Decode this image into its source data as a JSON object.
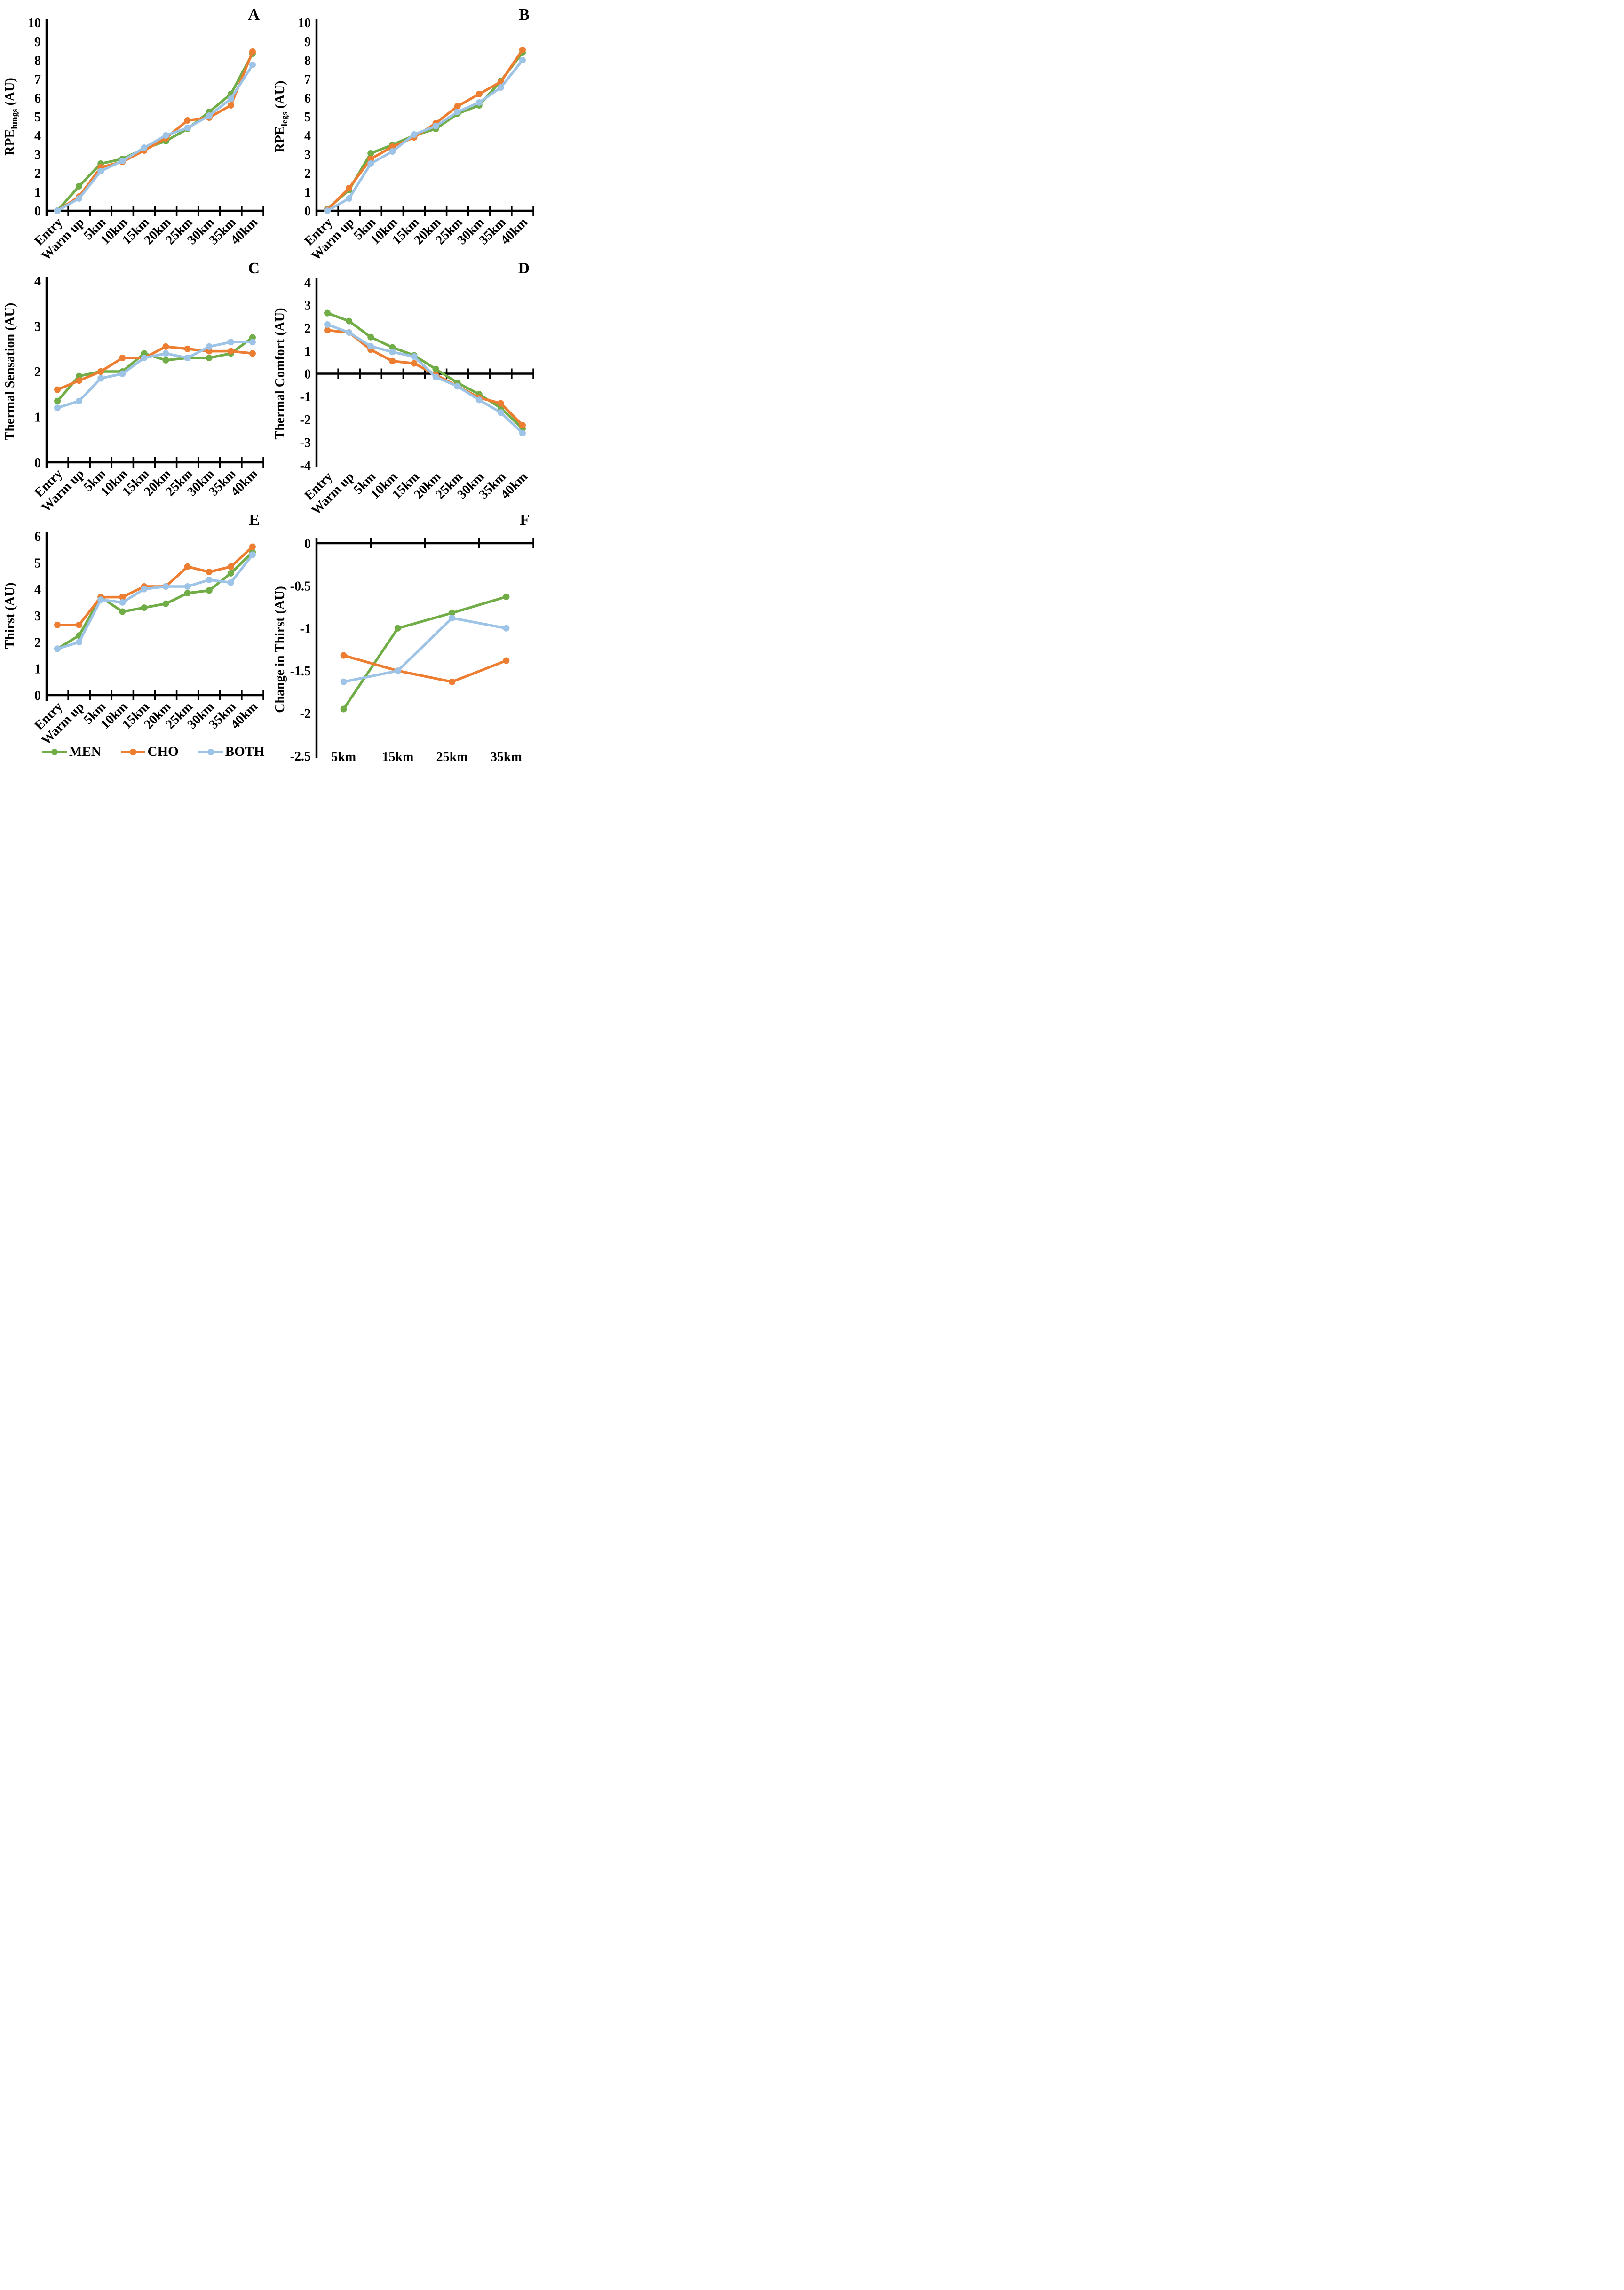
{
  "colors": {
    "men": "#70AD47",
    "cho": "#ED7D31",
    "both": "#9DC3E6",
    "axis": "#000000"
  },
  "legend": {
    "items": [
      {
        "key": "men",
        "label": "MEN"
      },
      {
        "key": "cho",
        "label": "CHO"
      },
      {
        "key": "both",
        "label": "BOTH"
      }
    ]
  },
  "chart_data": [
    {
      "id": "A",
      "type": "line",
      "letter": "A",
      "ylabel_parts": [
        {
          "text": "RPE"
        },
        {
          "text": "lungs",
          "sub": true
        },
        {
          "text": " (AU)"
        }
      ],
      "ylim": [
        0,
        10
      ],
      "yticks": [
        {
          "v": 0,
          "label": "0"
        },
        {
          "v": 1,
          "label": "1"
        },
        {
          "v": 2,
          "label": "2"
        },
        {
          "v": 3,
          "label": "3"
        },
        {
          "v": 4,
          "label": "4"
        },
        {
          "v": 5,
          "label": "5"
        },
        {
          "v": 6,
          "label": "6"
        },
        {
          "v": 7,
          "label": "7"
        },
        {
          "v": 8,
          "label": "8"
        },
        {
          "v": 9,
          "label": "9"
        },
        {
          "v": 10,
          "label": "10"
        }
      ],
      "categories": [
        "Entry",
        "Warm up",
        "5km",
        "10km",
        "15km",
        "20km",
        "25km",
        "30km",
        "35km",
        "40km"
      ],
      "rotate_x_labels": true,
      "x_axis": "bottom",
      "grid": false,
      "series": [
        {
          "name": "MEN",
          "color_key": "men",
          "values": [
            0,
            1.3,
            2.5,
            2.75,
            3.3,
            3.7,
            4.35,
            5.25,
            6.2,
            8.35
          ]
        },
        {
          "name": "CHO",
          "color_key": "cho",
          "values": [
            0,
            0.75,
            2.3,
            2.6,
            3.2,
            3.85,
            4.8,
            4.95,
            5.6,
            8.45
          ]
        },
        {
          "name": "BOTH",
          "color_key": "both",
          "values": [
            0,
            0.65,
            2.1,
            2.65,
            3.35,
            4.0,
            4.4,
            5.05,
            5.95,
            7.75
          ]
        }
      ]
    },
    {
      "id": "B",
      "type": "line",
      "letter": "B",
      "ylabel_parts": [
        {
          "text": "RPE"
        },
        {
          "text": "legs",
          "sub": true
        },
        {
          "text": " (AU)"
        }
      ],
      "ylim": [
        0,
        10
      ],
      "yticks": [
        {
          "v": 0,
          "label": "0"
        },
        {
          "v": 1,
          "label": "1"
        },
        {
          "v": 2,
          "label": "2"
        },
        {
          "v": 3,
          "label": "3"
        },
        {
          "v": 4,
          "label": "4"
        },
        {
          "v": 5,
          "label": "5"
        },
        {
          "v": 6,
          "label": "6"
        },
        {
          "v": 7,
          "label": "7"
        },
        {
          "v": 8,
          "label": "8"
        },
        {
          "v": 9,
          "label": "9"
        },
        {
          "v": 10,
          "label": "10"
        }
      ],
      "categories": [
        "Entry",
        "Warm up",
        "5km",
        "10km",
        "15km",
        "20km",
        "25km",
        "30km",
        "35km",
        "40km"
      ],
      "rotate_x_labels": true,
      "x_axis": "bottom",
      "grid": false,
      "series": [
        {
          "name": "MEN",
          "color_key": "men",
          "values": [
            0.1,
            1.1,
            3.05,
            3.5,
            4.0,
            4.35,
            5.15,
            5.6,
            6.9,
            8.4
          ]
        },
        {
          "name": "CHO",
          "color_key": "cho",
          "values": [
            0.05,
            1.2,
            2.75,
            3.4,
            3.9,
            4.65,
            5.55,
            6.2,
            6.85,
            8.55
          ]
        },
        {
          "name": "BOTH",
          "color_key": "both",
          "values": [
            0,
            0.65,
            2.5,
            3.15,
            4.05,
            4.5,
            5.25,
            5.75,
            6.55,
            8.0
          ]
        }
      ]
    },
    {
      "id": "C",
      "type": "line",
      "letter": "C",
      "ylabel_parts": [
        {
          "text": "Thermal Sensation (AU)"
        }
      ],
      "ylim": [
        0,
        4
      ],
      "yticks": [
        {
          "v": 0,
          "label": "0"
        },
        {
          "v": 1,
          "label": "1"
        },
        {
          "v": 2,
          "label": "2"
        },
        {
          "v": 3,
          "label": "3"
        },
        {
          "v": 4,
          "label": "4"
        }
      ],
      "categories": [
        "Entry",
        "Warm up",
        "5km",
        "10km",
        "15km",
        "20km",
        "25km",
        "30km",
        "35km",
        "40km"
      ],
      "rotate_x_labels": true,
      "x_axis": "bottom",
      "grid": false,
      "series": [
        {
          "name": "MEN",
          "color_key": "men",
          "values": [
            1.35,
            1.9,
            2.0,
            2.0,
            2.4,
            2.25,
            2.3,
            2.3,
            2.4,
            2.75
          ]
        },
        {
          "name": "CHO",
          "color_key": "cho",
          "values": [
            1.6,
            1.8,
            2.0,
            2.3,
            2.3,
            2.55,
            2.5,
            2.45,
            2.45,
            2.4
          ]
        },
        {
          "name": "BOTH",
          "color_key": "both",
          "values": [
            1.2,
            1.35,
            1.85,
            1.95,
            2.3,
            2.4,
            2.3,
            2.55,
            2.65,
            2.65
          ]
        }
      ]
    },
    {
      "id": "D",
      "type": "line",
      "letter": "D",
      "ylabel_parts": [
        {
          "text": "Thermal Comfort (AU)"
        }
      ],
      "ylim": [
        -4,
        4
      ],
      "yticks": [
        {
          "v": 4,
          "label": "4"
        },
        {
          "v": 3,
          "label": "3"
        },
        {
          "v": 2,
          "label": "2"
        },
        {
          "v": 1,
          "label": "1"
        },
        {
          "v": 0,
          "label": "0"
        },
        {
          "v": -1,
          "label": "-1"
        },
        {
          "v": -2,
          "label": "-2"
        },
        {
          "v": -3,
          "label": "-3"
        },
        {
          "v": -4,
          "label": "-4"
        }
      ],
      "categories": [
        "Entry",
        "Warm up",
        "5km",
        "10km",
        "15km",
        "20km",
        "25km",
        "30km",
        "35km",
        "40km"
      ],
      "rotate_x_labels": true,
      "x_axis": "zero",
      "grid": false,
      "series": [
        {
          "name": "MEN",
          "color_key": "men",
          "values": [
            2.65,
            2.3,
            1.6,
            1.15,
            0.8,
            0.2,
            -0.4,
            -0.9,
            -1.5,
            -2.4
          ]
        },
        {
          "name": "CHO",
          "color_key": "cho",
          "values": [
            1.9,
            1.8,
            1.05,
            0.55,
            0.45,
            -0.05,
            -0.55,
            -1.05,
            -1.3,
            -2.25
          ]
        },
        {
          "name": "BOTH",
          "color_key": "both",
          "values": [
            2.15,
            1.8,
            1.2,
            0.95,
            0.75,
            -0.15,
            -0.55,
            -1.15,
            -1.7,
            -2.6
          ]
        }
      ]
    },
    {
      "id": "E",
      "type": "line",
      "letter": "E",
      "ylabel_parts": [
        {
          "text": "Thirst (AU)"
        }
      ],
      "ylim": [
        0,
        6
      ],
      "yticks": [
        {
          "v": 0,
          "label": "0"
        },
        {
          "v": 1,
          "label": "1"
        },
        {
          "v": 2,
          "label": "2"
        },
        {
          "v": 3,
          "label": "3"
        },
        {
          "v": 4,
          "label": "4"
        },
        {
          "v": 5,
          "label": "5"
        },
        {
          "v": 6,
          "label": "6"
        }
      ],
      "categories": [
        "Entry",
        "Warm up",
        "5km",
        "10km",
        "15km",
        "20km",
        "25km",
        "30km",
        "35km",
        "40km"
      ],
      "rotate_x_labels": true,
      "x_axis": "bottom",
      "grid": false,
      "series": [
        {
          "name": "MEN",
          "color_key": "men",
          "values": [
            1.75,
            2.25,
            3.7,
            3.15,
            3.3,
            3.45,
            3.85,
            3.95,
            4.6,
            5.4
          ]
        },
        {
          "name": "CHO",
          "color_key": "cho",
          "values": [
            2.65,
            2.65,
            3.7,
            3.7,
            4.1,
            4.1,
            4.85,
            4.65,
            4.85,
            5.6
          ]
        },
        {
          "name": "BOTH",
          "color_key": "both",
          "values": [
            1.75,
            2.0,
            3.6,
            3.5,
            4.0,
            4.1,
            4.1,
            4.35,
            4.25,
            5.3
          ]
        }
      ]
    },
    {
      "id": "F",
      "type": "line",
      "letter": "F",
      "ylabel_parts": [
        {
          "text": "Change in Thirst (AU)"
        }
      ],
      "ylim": [
        -2.5,
        0
      ],
      "yticks": [
        {
          "v": 0,
          "label": "0"
        },
        {
          "v": -0.5,
          "label": "-0.5"
        },
        {
          "v": -1,
          "label": "-1"
        },
        {
          "v": -1.5,
          "label": "-1.5"
        },
        {
          "v": -2,
          "label": "-2"
        },
        {
          "v": -2.5,
          "label": "-2.5"
        }
      ],
      "categories": [
        "5km",
        "15km",
        "25km",
        "35km"
      ],
      "rotate_x_labels": false,
      "x_axis": "top",
      "grid": false,
      "series": [
        {
          "name": "MEN",
          "color_key": "men",
          "values": [
            -1.95,
            -1.0,
            -0.82,
            -0.63
          ]
        },
        {
          "name": "CHO",
          "color_key": "cho",
          "values": [
            -1.32,
            -1.5,
            -1.63,
            -1.38
          ]
        },
        {
          "name": "BOTH",
          "color_key": "both",
          "values": [
            -1.63,
            -1.5,
            -0.88,
            -1.0
          ]
        }
      ]
    }
  ]
}
